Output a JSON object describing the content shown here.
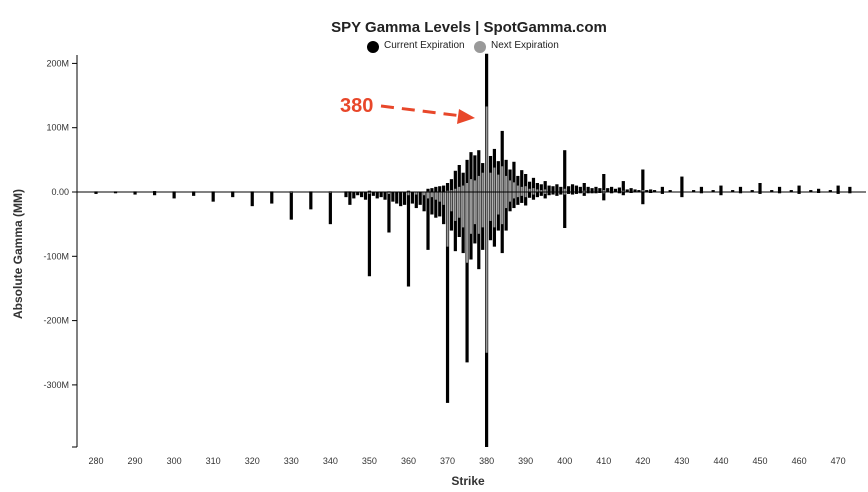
{
  "chart_data": {
    "type": "bar",
    "title": "SPY Gamma Levels | SpotGamma.com",
    "xlabel": "Strike",
    "ylabel": "Absolute Gamma (MM)",
    "xlim": [
      276,
      474
    ],
    "ylim": [
      -400,
      210
    ],
    "x_ticks": [
      280,
      290,
      300,
      310,
      320,
      330,
      340,
      350,
      360,
      370,
      380,
      390,
      400,
      410,
      420,
      430,
      440,
      450,
      460,
      470
    ],
    "x_tick_labels": [
      "280",
      "290",
      "300",
      "310",
      "320",
      "330",
      "340",
      "350",
      "360",
      "370",
      "380",
      "390",
      "400",
      "410",
      "420",
      "430",
      "440",
      "450",
      "460",
      "470"
    ],
    "y_ticks": [
      200,
      100,
      0,
      -100,
      -200,
      -300
    ],
    "y_tick_labels": [
      "200M",
      "100M",
      "0.00",
      "-100M",
      "-200M",
      "-300M"
    ],
    "legend_position": "top-center",
    "grid": false,
    "series": [
      {
        "name": "Current Expiration",
        "color": "#000000",
        "positive": [
          {
            "x": 280,
            "v": 1
          },
          {
            "x": 285,
            "v": 1
          },
          {
            "x": 290,
            "v": 1
          },
          {
            "x": 295,
            "v": 1.5
          },
          {
            "x": 300,
            "v": 1
          },
          {
            "x": 305,
            "v": 1
          },
          {
            "x": 310,
            "v": 1
          },
          {
            "x": 315,
            "v": 1
          },
          {
            "x": 320,
            "v": 1
          },
          {
            "x": 325,
            "v": 1
          },
          {
            "x": 330,
            "v": 1
          },
          {
            "x": 335,
            "v": 1
          },
          {
            "x": 340,
            "v": 1
          },
          {
            "x": 344,
            "v": 1
          },
          {
            "x": 345,
            "v": 1
          },
          {
            "x": 350,
            "v": 2
          },
          {
            "x": 355,
            "v": 1
          },
          {
            "x": 360,
            "v": 2
          },
          {
            "x": 365,
            "v": 5
          },
          {
            "x": 366,
            "v": 6
          },
          {
            "x": 367,
            "v": 8
          },
          {
            "x": 368,
            "v": 9
          },
          {
            "x": 369,
            "v": 10
          },
          {
            "x": 370,
            "v": 14
          },
          {
            "x": 371,
            "v": 20
          },
          {
            "x": 372,
            "v": 33
          },
          {
            "x": 373,
            "v": 42
          },
          {
            "x": 374,
            "v": 30
          },
          {
            "x": 375,
            "v": 50
          },
          {
            "x": 376,
            "v": 62
          },
          {
            "x": 377,
            "v": 57
          },
          {
            "x": 378,
            "v": 65
          },
          {
            "x": 379,
            "v": 45
          },
          {
            "x": 380,
            "v": 215
          },
          {
            "x": 381,
            "v": 56
          },
          {
            "x": 382,
            "v": 67
          },
          {
            "x": 383,
            "v": 48
          },
          {
            "x": 384,
            "v": 95
          },
          {
            "x": 385,
            "v": 50
          },
          {
            "x": 386,
            "v": 35
          },
          {
            "x": 387,
            "v": 47
          },
          {
            "x": 388,
            "v": 25
          },
          {
            "x": 389,
            "v": 34
          },
          {
            "x": 390,
            "v": 28
          },
          {
            "x": 391,
            "v": 16
          },
          {
            "x": 392,
            "v": 22
          },
          {
            "x": 393,
            "v": 14
          },
          {
            "x": 394,
            "v": 12
          },
          {
            "x": 395,
            "v": 17
          },
          {
            "x": 396,
            "v": 10
          },
          {
            "x": 397,
            "v": 9
          },
          {
            "x": 398,
            "v": 12
          },
          {
            "x": 399,
            "v": 8
          },
          {
            "x": 400,
            "v": 65
          },
          {
            "x": 401,
            "v": 9
          },
          {
            "x": 402,
            "v": 12
          },
          {
            "x": 403,
            "v": 10
          },
          {
            "x": 404,
            "v": 8
          },
          {
            "x": 405,
            "v": 14
          },
          {
            "x": 406,
            "v": 8
          },
          {
            "x": 407,
            "v": 6
          },
          {
            "x": 408,
            "v": 8
          },
          {
            "x": 409,
            "v": 6
          },
          {
            "x": 410,
            "v": 28
          },
          {
            "x": 411,
            "v": 6
          },
          {
            "x": 412,
            "v": 8
          },
          {
            "x": 413,
            "v": 5
          },
          {
            "x": 414,
            "v": 7
          },
          {
            "x": 415,
            "v": 17
          },
          {
            "x": 416,
            "v": 4
          },
          {
            "x": 417,
            "v": 6
          },
          {
            "x": 418,
            "v": 4
          },
          {
            "x": 419,
            "v": 3
          },
          {
            "x": 420,
            "v": 35
          },
          {
            "x": 421,
            "v": 3
          },
          {
            "x": 422,
            "v": 4
          },
          {
            "x": 423,
            "v": 3
          },
          {
            "x": 425,
            "v": 8
          },
          {
            "x": 427,
            "v": 3
          },
          {
            "x": 430,
            "v": 24
          },
          {
            "x": 433,
            "v": 3
          },
          {
            "x": 435,
            "v": 8
          },
          {
            "x": 438,
            "v": 3
          },
          {
            "x": 440,
            "v": 10
          },
          {
            "x": 443,
            "v": 3
          },
          {
            "x": 445,
            "v": 8
          },
          {
            "x": 448,
            "v": 3
          },
          {
            "x": 450,
            "v": 14
          },
          {
            "x": 453,
            "v": 3
          },
          {
            "x": 455,
            "v": 8
          },
          {
            "x": 458,
            "v": 3
          },
          {
            "x": 460,
            "v": 10
          },
          {
            "x": 463,
            "v": 3
          },
          {
            "x": 465,
            "v": 5
          },
          {
            "x": 468,
            "v": 3
          },
          {
            "x": 470,
            "v": 10
          },
          {
            "x": 473,
            "v": 8
          }
        ],
        "negative": [
          {
            "x": 280,
            "v": -3
          },
          {
            "x": 285,
            "v": -2
          },
          {
            "x": 290,
            "v": -4
          },
          {
            "x": 295,
            "v": -5
          },
          {
            "x": 300,
            "v": -10
          },
          {
            "x": 305,
            "v": -6
          },
          {
            "x": 310,
            "v": -15
          },
          {
            "x": 315,
            "v": -8
          },
          {
            "x": 320,
            "v": -22
          },
          {
            "x": 325,
            "v": -18
          },
          {
            "x": 330,
            "v": -43
          },
          {
            "x": 335,
            "v": -27
          },
          {
            "x": 340,
            "v": -50
          },
          {
            "x": 344,
            "v": -8
          },
          {
            "x": 345,
            "v": -20
          },
          {
            "x": 346,
            "v": -10
          },
          {
            "x": 347,
            "v": -5
          },
          {
            "x": 348,
            "v": -8
          },
          {
            "x": 349,
            "v": -12
          },
          {
            "x": 350,
            "v": -131
          },
          {
            "x": 351,
            "v": -6
          },
          {
            "x": 352,
            "v": -10
          },
          {
            "x": 353,
            "v": -8
          },
          {
            "x": 354,
            "v": -12
          },
          {
            "x": 355,
            "v": -63
          },
          {
            "x": 356,
            "v": -15
          },
          {
            "x": 357,
            "v": -18
          },
          {
            "x": 358,
            "v": -22
          },
          {
            "x": 359,
            "v": -20
          },
          {
            "x": 360,
            "v": -147
          },
          {
            "x": 361,
            "v": -18
          },
          {
            "x": 362,
            "v": -25
          },
          {
            "x": 363,
            "v": -20
          },
          {
            "x": 364,
            "v": -30
          },
          {
            "x": 365,
            "v": -90
          },
          {
            "x": 366,
            "v": -35
          },
          {
            "x": 367,
            "v": -40
          },
          {
            "x": 368,
            "v": -38
          },
          {
            "x": 369,
            "v": -50
          },
          {
            "x": 370,
            "v": -328
          },
          {
            "x": 371,
            "v": -60
          },
          {
            "x": 372,
            "v": -92
          },
          {
            "x": 373,
            "v": -70
          },
          {
            "x": 374,
            "v": -95
          },
          {
            "x": 375,
            "v": -265
          },
          {
            "x": 376,
            "v": -105
          },
          {
            "x": 377,
            "v": -80
          },
          {
            "x": 378,
            "v": -120
          },
          {
            "x": 379,
            "v": -90
          },
          {
            "x": 380,
            "v": -400
          },
          {
            "x": 381,
            "v": -75
          },
          {
            "x": 382,
            "v": -85
          },
          {
            "x": 383,
            "v": -60
          },
          {
            "x": 384,
            "v": -95
          },
          {
            "x": 385,
            "v": -60
          },
          {
            "x": 386,
            "v": -30
          },
          {
            "x": 387,
            "v": -25
          },
          {
            "x": 388,
            "v": -20
          },
          {
            "x": 389,
            "v": -17
          },
          {
            "x": 390,
            "v": -21
          },
          {
            "x": 391,
            "v": -9
          },
          {
            "x": 392,
            "v": -12
          },
          {
            "x": 393,
            "v": -8
          },
          {
            "x": 394,
            "v": -6
          },
          {
            "x": 395,
            "v": -10
          },
          {
            "x": 396,
            "v": -5
          },
          {
            "x": 397,
            "v": -4
          },
          {
            "x": 398,
            "v": -6
          },
          {
            "x": 399,
            "v": -4
          },
          {
            "x": 400,
            "v": -56
          },
          {
            "x": 401,
            "v": -3
          },
          {
            "x": 402,
            "v": -4
          },
          {
            "x": 403,
            "v": -3
          },
          {
            "x": 404,
            "v": -2
          },
          {
            "x": 405,
            "v": -6
          },
          {
            "x": 406,
            "v": -2
          },
          {
            "x": 407,
            "v": -2
          },
          {
            "x": 408,
            "v": -2
          },
          {
            "x": 409,
            "v": -1
          },
          {
            "x": 410,
            "v": -13
          },
          {
            "x": 412,
            "v": -2
          },
          {
            "x": 414,
            "v": -2
          },
          {
            "x": 415,
            "v": -5
          },
          {
            "x": 417,
            "v": -1
          },
          {
            "x": 420,
            "v": -19
          },
          {
            "x": 422,
            "v": -1
          },
          {
            "x": 425,
            "v": -3
          },
          {
            "x": 430,
            "v": -8
          },
          {
            "x": 435,
            "v": -2
          },
          {
            "x": 440,
            "v": -5
          },
          {
            "x": 445,
            "v": -2
          },
          {
            "x": 450,
            "v": -3
          },
          {
            "x": 455,
            "v": -2
          },
          {
            "x": 460,
            "v": -3
          },
          {
            "x": 465,
            "v": -1
          },
          {
            "x": 470,
            "v": -3
          },
          {
            "x": 473,
            "v": -2
          }
        ]
      },
      {
        "name": "Next Expiration",
        "color": "#999999",
        "positive": [
          {
            "x": 350,
            "v": 1
          },
          {
            "x": 360,
            "v": 1
          },
          {
            "x": 365,
            "v": 1
          },
          {
            "x": 370,
            "v": 2
          },
          {
            "x": 371,
            "v": 3
          },
          {
            "x": 372,
            "v": 5
          },
          {
            "x": 373,
            "v": 8
          },
          {
            "x": 374,
            "v": 10
          },
          {
            "x": 375,
            "v": 14
          },
          {
            "x": 376,
            "v": 20
          },
          {
            "x": 377,
            "v": 18
          },
          {
            "x": 378,
            "v": 25
          },
          {
            "x": 379,
            "v": 30
          },
          {
            "x": 380,
            "v": 133
          },
          {
            "x": 381,
            "v": 30
          },
          {
            "x": 382,
            "v": 38
          },
          {
            "x": 383,
            "v": 27
          },
          {
            "x": 384,
            "v": 40
          },
          {
            "x": 385,
            "v": 25
          },
          {
            "x": 386,
            "v": 18
          },
          {
            "x": 387,
            "v": 15
          },
          {
            "x": 388,
            "v": 10
          },
          {
            "x": 389,
            "v": 8
          },
          {
            "x": 390,
            "v": 9
          },
          {
            "x": 391,
            "v": 5
          },
          {
            "x": 392,
            "v": 6
          },
          {
            "x": 393,
            "v": 4
          },
          {
            "x": 394,
            "v": 3
          },
          {
            "x": 395,
            "v": 4
          },
          {
            "x": 400,
            "v": 5
          },
          {
            "x": 405,
            "v": 2
          },
          {
            "x": 410,
            "v": 3
          },
          {
            "x": 415,
            "v": 2
          },
          {
            "x": 420,
            "v": 3
          }
        ],
        "negative": [
          {
            "x": 330,
            "v": -1
          },
          {
            "x": 340,
            "v": -1
          },
          {
            "x": 350,
            "v": -3
          },
          {
            "x": 355,
            "v": -3
          },
          {
            "x": 360,
            "v": -5
          },
          {
            "x": 362,
            "v": -4
          },
          {
            "x": 364,
            "v": -5
          },
          {
            "x": 365,
            "v": -10
          },
          {
            "x": 366,
            "v": -8
          },
          {
            "x": 367,
            "v": -12
          },
          {
            "x": 368,
            "v": -15
          },
          {
            "x": 369,
            "v": -20
          },
          {
            "x": 370,
            "v": -85
          },
          {
            "x": 371,
            "v": -30
          },
          {
            "x": 372,
            "v": -45
          },
          {
            "x": 373,
            "v": -40
          },
          {
            "x": 374,
            "v": -55
          },
          {
            "x": 375,
            "v": -110
          },
          {
            "x": 376,
            "v": -65
          },
          {
            "x": 377,
            "v": -50
          },
          {
            "x": 378,
            "v": -65
          },
          {
            "x": 379,
            "v": -55
          },
          {
            "x": 380,
            "v": -250
          },
          {
            "x": 381,
            "v": -45
          },
          {
            "x": 382,
            "v": -55
          },
          {
            "x": 383,
            "v": -35
          },
          {
            "x": 384,
            "v": -50
          },
          {
            "x": 385,
            "v": -25
          },
          {
            "x": 386,
            "v": -15
          },
          {
            "x": 387,
            "v": -10
          },
          {
            "x": 388,
            "v": -8
          },
          {
            "x": 389,
            "v": -6
          },
          {
            "x": 390,
            "v": -8
          },
          {
            "x": 392,
            "v": -4
          },
          {
            "x": 395,
            "v": -3
          },
          {
            "x": 400,
            "v": -4
          },
          {
            "x": 405,
            "v": -1
          },
          {
            "x": 410,
            "v": -2
          }
        ]
      }
    ],
    "annotations": [
      {
        "text": "380",
        "x": 380,
        "y": 115,
        "color": "#e8472a",
        "style": "dashed-arrow"
      }
    ]
  }
}
